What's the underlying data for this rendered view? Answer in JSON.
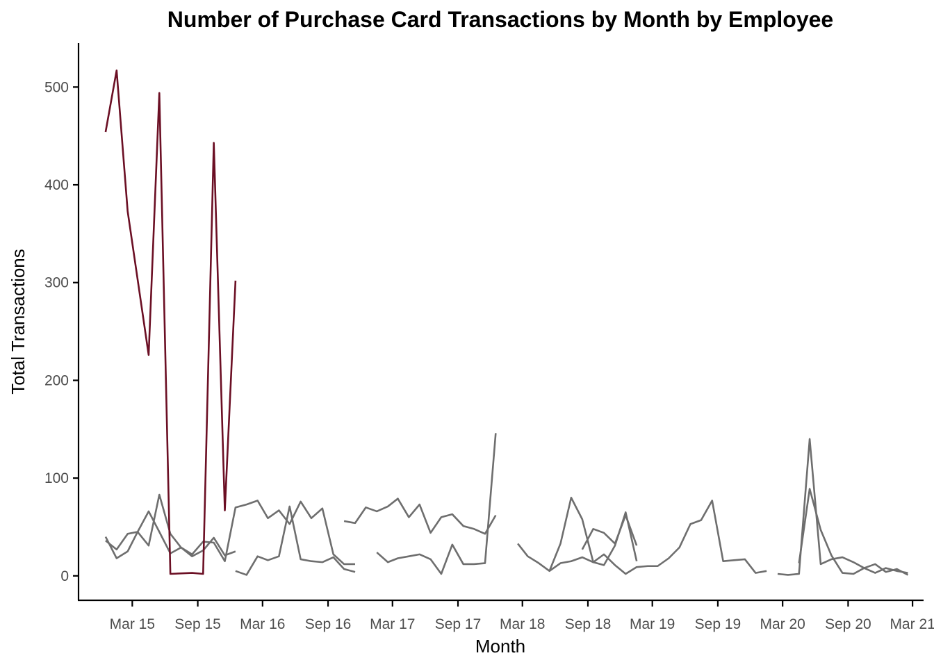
{
  "chart_data": {
    "type": "line",
    "title": "Number of Purchase Card Transactions by Month by Employee",
    "xlabel": "Month",
    "ylabel": "Total Transactions",
    "x_ticks": [
      "Mar 15",
      "Sep 15",
      "Mar 16",
      "Sep 16",
      "Mar 17",
      "Sep 17",
      "Mar 18",
      "Sep 18",
      "Mar 19",
      "Sep 19",
      "Mar 20",
      "Sep 20",
      "Mar 21"
    ],
    "y_ticks": [
      0,
      100,
      200,
      300,
      400,
      500
    ],
    "xlim": [
      "2014-10-01",
      "2021-04-01"
    ],
    "ylim": [
      -25,
      545
    ],
    "grid": false,
    "colors": {
      "highlight": "#6b0f24",
      "other": "#6e6e6e"
    },
    "series": [
      {
        "color": "#6b0f24",
        "points": [
          [
            "2014-12",
            454
          ],
          [
            "2015-01",
            517
          ],
          [
            "2015-02",
            373
          ],
          [
            "2015-04",
            226
          ],
          [
            "2015-05",
            494
          ],
          [
            "2015-06",
            2
          ],
          [
            "2015-08",
            3
          ],
          [
            "2015-09",
            2
          ],
          [
            "2015-10",
            443
          ],
          [
            "2015-11",
            67
          ],
          [
            "2015-12",
            302
          ]
        ]
      },
      {
        "color": "#6e6e6e",
        "points": [
          [
            "2014-12",
            36
          ],
          [
            "2015-01",
            27
          ],
          [
            "2015-02",
            43
          ],
          [
            "2015-03",
            45
          ],
          [
            "2015-04",
            31
          ],
          [
            "2015-05",
            83
          ],
          [
            "2015-06",
            43
          ],
          [
            "2015-07",
            29
          ],
          [
            "2015-08",
            22
          ],
          [
            "2015-09",
            35
          ],
          [
            "2015-10",
            34
          ],
          [
            "2015-11",
            15
          ],
          [
            "2015-12",
            70
          ],
          [
            "2016-01",
            73
          ],
          [
            "2016-02",
            77
          ],
          [
            "2016-03",
            59
          ],
          [
            "2016-04",
            67
          ],
          [
            "2016-05",
            53
          ],
          [
            "2016-06",
            76
          ],
          [
            "2016-07",
            59
          ],
          [
            "2016-08",
            69
          ],
          [
            "2016-09",
            22
          ],
          [
            "2016-10",
            12
          ],
          [
            "2016-11",
            12
          ]
        ]
      },
      {
        "color": "#6e6e6e",
        "points": [
          [
            "2014-12",
            40
          ],
          [
            "2015-01",
            18
          ],
          [
            "2015-02",
            25
          ],
          [
            "2015-03",
            45
          ],
          [
            "2015-04",
            66
          ],
          [
            "2015-05",
            45
          ],
          [
            "2015-06",
            23
          ],
          [
            "2015-07",
            29
          ],
          [
            "2015-08",
            20
          ],
          [
            "2015-09",
            26
          ],
          [
            "2015-10",
            39
          ],
          [
            "2015-11",
            21
          ],
          [
            "2015-12",
            25
          ]
        ]
      },
      {
        "color": "#6e6e6e",
        "points": [
          [
            "2015-12",
            5
          ],
          [
            "2016-01",
            1
          ],
          [
            "2016-02",
            20
          ],
          [
            "2016-03",
            16
          ],
          [
            "2016-04",
            20
          ],
          [
            "2016-05",
            71
          ],
          [
            "2016-06",
            17
          ],
          [
            "2016-07",
            15
          ],
          [
            "2016-08",
            14
          ],
          [
            "2016-09",
            19
          ],
          [
            "2016-10",
            7
          ],
          [
            "2016-11",
            4
          ]
        ]
      },
      {
        "color": "#6e6e6e",
        "points": [
          [
            "2016-10",
            56
          ],
          [
            "2016-11",
            54
          ],
          [
            "2016-12",
            70
          ],
          [
            "2017-01",
            66
          ],
          [
            "2017-02",
            71
          ],
          [
            "2017-03",
            79
          ],
          [
            "2017-04",
            60
          ],
          [
            "2017-05",
            73
          ],
          [
            "2017-06",
            44
          ],
          [
            "2017-07",
            60
          ],
          [
            "2017-08",
            63
          ],
          [
            "2017-09",
            51
          ],
          [
            "2017-10",
            48
          ],
          [
            "2017-11",
            43
          ],
          [
            "2017-12",
            62
          ]
        ]
      },
      {
        "color": "#6e6e6e",
        "points": [
          [
            "2017-01",
            24
          ],
          [
            "2017-02",
            14
          ],
          [
            "2017-03",
            18
          ],
          [
            "2017-04",
            20
          ],
          [
            "2017-05",
            22
          ],
          [
            "2017-06",
            17
          ],
          [
            "2017-07",
            2
          ],
          [
            "2017-08",
            32
          ],
          [
            "2017-09",
            12
          ],
          [
            "2017-10",
            12
          ],
          [
            "2017-11",
            13
          ],
          [
            "2017-12",
            146
          ]
        ]
      },
      {
        "color": "#6e6e6e",
        "points": [
          [
            "2018-02",
            33
          ],
          [
            "2018-03",
            20
          ],
          [
            "2018-04",
            13
          ],
          [
            "2018-05",
            5
          ],
          [
            "2018-06",
            13
          ],
          [
            "2018-07",
            15
          ],
          [
            "2018-08",
            19
          ],
          [
            "2018-09",
            14
          ],
          [
            "2018-10",
            11
          ],
          [
            "2018-11",
            31
          ],
          [
            "2018-12",
            65
          ],
          [
            "2019-01",
            15
          ]
        ]
      },
      {
        "color": "#6e6e6e",
        "points": [
          [
            "2018-05",
            5
          ],
          [
            "2018-06",
            33
          ],
          [
            "2018-07",
            80
          ],
          [
            "2018-08",
            58
          ],
          [
            "2018-09",
            14
          ],
          [
            "2018-10",
            22
          ],
          [
            "2018-11",
            11
          ],
          [
            "2018-12",
            2
          ],
          [
            "2019-01",
            9
          ],
          [
            "2019-02",
            10
          ],
          [
            "2019-03",
            10
          ],
          [
            "2019-04",
            18
          ],
          [
            "2019-05",
            29
          ],
          [
            "2019-06",
            53
          ],
          [
            "2019-07",
            57
          ],
          [
            "2019-08",
            77
          ],
          [
            "2019-09",
            15
          ],
          [
            "2019-10",
            16
          ],
          [
            "2019-11",
            17
          ],
          [
            "2019-12",
            3
          ],
          [
            "2020-01",
            5
          ]
        ]
      },
      {
        "color": "#6e6e6e",
        "points": [
          [
            "2018-08",
            27
          ],
          [
            "2018-09",
            48
          ],
          [
            "2018-10",
            44
          ],
          [
            "2018-11",
            33
          ],
          [
            "2018-12",
            62
          ],
          [
            "2019-01",
            31
          ]
        ]
      },
      {
        "color": "#6e6e6e",
        "points": [
          [
            "2020-02",
            2
          ],
          [
            "2020-03",
            1
          ],
          [
            "2020-04",
            2
          ],
          [
            "2020-05",
            140
          ],
          [
            "2020-06",
            12
          ],
          [
            "2020-07",
            17
          ],
          [
            "2020-08",
            19
          ],
          [
            "2020-09",
            14
          ],
          [
            "2020-10",
            8
          ],
          [
            "2020-11",
            12
          ],
          [
            "2020-12",
            4
          ],
          [
            "2021-01",
            7
          ],
          [
            "2021-02",
            1
          ]
        ]
      },
      {
        "color": "#6e6e6e",
        "points": [
          [
            "2020-04",
            13
          ],
          [
            "2020-05",
            89
          ],
          [
            "2020-06",
            47
          ],
          [
            "2020-07",
            21
          ],
          [
            "2020-08",
            3
          ],
          [
            "2020-09",
            2
          ],
          [
            "2020-10",
            8
          ],
          [
            "2020-11",
            3
          ],
          [
            "2020-12",
            8
          ],
          [
            "2021-01",
            5
          ],
          [
            "2021-02",
            3
          ]
        ]
      }
    ]
  }
}
